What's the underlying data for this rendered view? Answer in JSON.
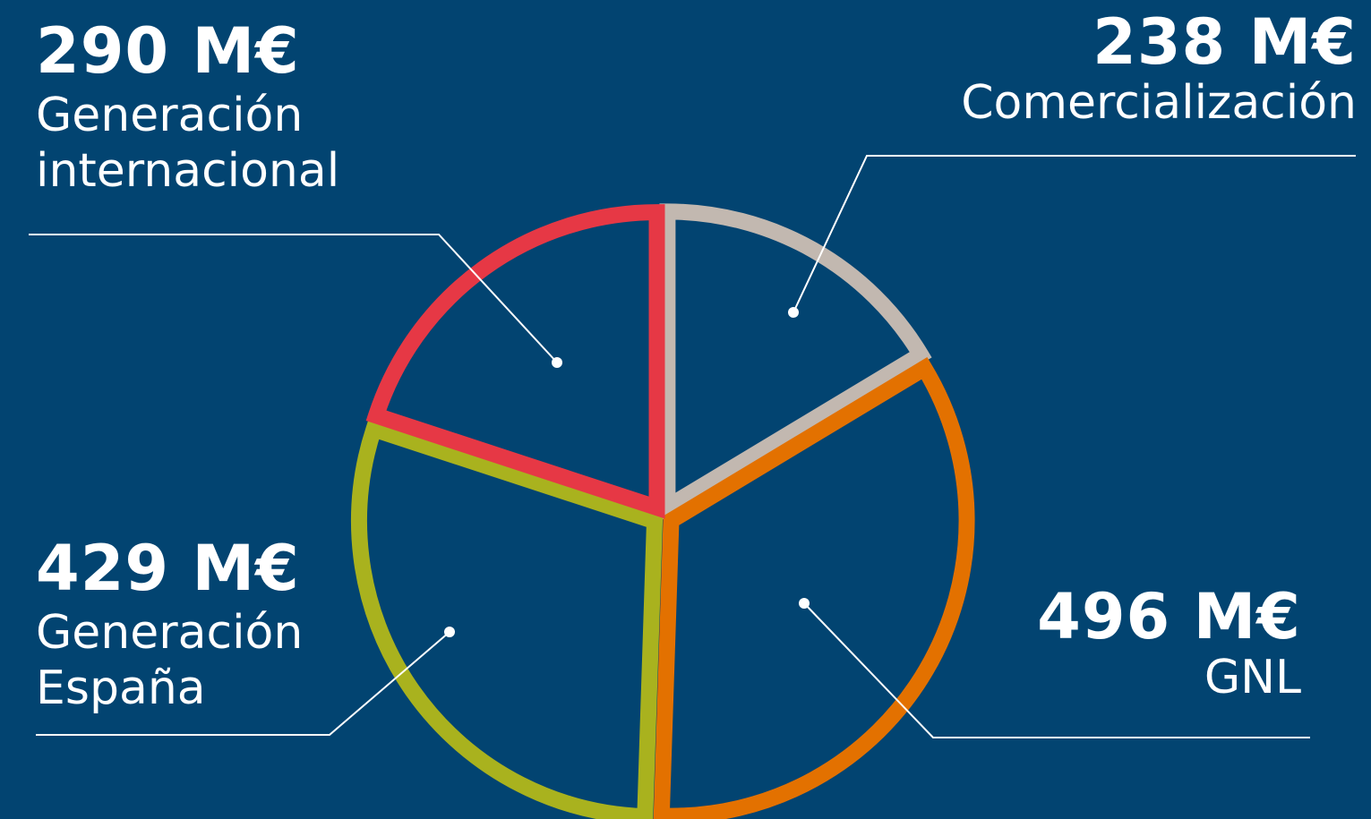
{
  "colors": {
    "background": "#024471",
    "leader": "#ffffff"
  },
  "chart_data": {
    "type": "pie",
    "title": "",
    "unit": "M€",
    "slices": [
      {
        "label": "Comercialización",
        "value": 238,
        "value_label": "238 M€",
        "color": "#C2B8B0"
      },
      {
        "label": "GNL",
        "value": 496,
        "value_label": "496 M€",
        "color": "#E37100"
      },
      {
        "label": "Generación España",
        "value": 429,
        "value_label": "429 M€",
        "color": "#A9B21E"
      },
      {
        "label": "Generación internacional",
        "value": 290,
        "value_label": "290 M€",
        "color": "#E63845"
      }
    ]
  },
  "labels": {
    "gen_int": {
      "value": "290 M€",
      "line1": "Generación",
      "line2": "internacional"
    },
    "com": {
      "value": "238 M€",
      "line1": "Comercialización"
    },
    "gen_esp": {
      "value": "429 M€",
      "line1": "Generación",
      "line2": "España"
    },
    "gnl": {
      "value": "496 M€",
      "line1": "GNL"
    }
  }
}
